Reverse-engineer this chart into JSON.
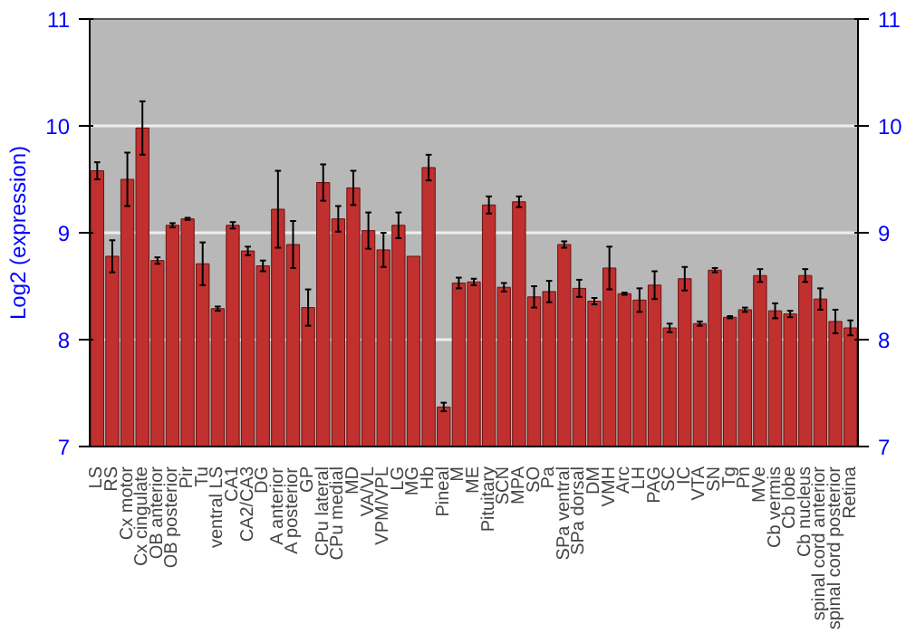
{
  "chart_data": {
    "type": "bar",
    "ylabel": "Log2 (expression)",
    "categories": [
      "LS",
      "RS",
      "Cx motor",
      "Cx cingulate",
      "OB anterior",
      "OB posterior",
      "Pir",
      "Tu",
      "ventral LS",
      "CA1",
      "CA2/CA3",
      "DG",
      "A anterior",
      "A posterior",
      "GP",
      "CPu lateral",
      "CPu medial",
      "MD",
      "VA/VL",
      "VPM/VPL",
      "LG",
      "MG",
      "Hb",
      "Pineal",
      "M",
      "ME",
      "Pituitary",
      "SCN",
      "MPA",
      "SO",
      "Pa",
      "SPa ventral",
      "SPa dorsal",
      "DM",
      "VMH",
      "Arc",
      "LH",
      "PAG",
      "SC",
      "IC",
      "VTA",
      "SN",
      "Tg",
      "Pn",
      "MVe",
      "Cb vermis",
      "Cb lobe",
      "Cb nucleus",
      "spinal cord anterior",
      "spinal cord posterior",
      "Retina"
    ],
    "values": [
      9.58,
      8.78,
      9.5,
      9.98,
      8.74,
      9.07,
      9.13,
      8.71,
      8.29,
      9.07,
      8.83,
      8.69,
      9.22,
      8.89,
      8.3,
      9.47,
      9.13,
      9.42,
      9.02,
      8.84,
      9.07,
      8.78,
      9.61,
      7.37,
      8.53,
      8.54,
      9.26,
      8.49,
      9.29,
      8.4,
      8.45,
      8.89,
      8.48,
      8.36,
      8.67,
      8.43,
      8.37,
      8.51,
      8.11,
      8.57,
      8.15,
      8.65,
      8.21,
      8.28,
      8.6,
      8.27,
      8.24,
      8.6,
      8.38,
      8.17,
      8.11
    ],
    "errors": [
      0.08,
      0.15,
      0.25,
      0.25,
      0.03,
      0.02,
      0.01,
      0.2,
      0.02,
      0.03,
      0.04,
      0.05,
      0.36,
      0.22,
      0.17,
      0.17,
      0.12,
      0.16,
      0.17,
      0.16,
      0.12,
      null,
      0.12,
      0.04,
      0.05,
      0.03,
      0.08,
      0.04,
      0.05,
      0.1,
      0.1,
      0.03,
      0.08,
      0.03,
      0.2,
      0.01,
      0.11,
      0.13,
      0.04,
      0.11,
      0.02,
      0.02,
      0.01,
      0.02,
      0.06,
      0.07,
      0.03,
      0.06,
      0.1,
      0.11,
      0.07
    ],
    "color": "#c0302e",
    "ylim": [
      7,
      11
    ],
    "yticks": [
      7,
      8,
      9,
      10,
      11
    ],
    "y2lim": [
      7,
      11
    ],
    "y2ticks": [
      7,
      8,
      9,
      10,
      11
    ],
    "grid": "y"
  }
}
